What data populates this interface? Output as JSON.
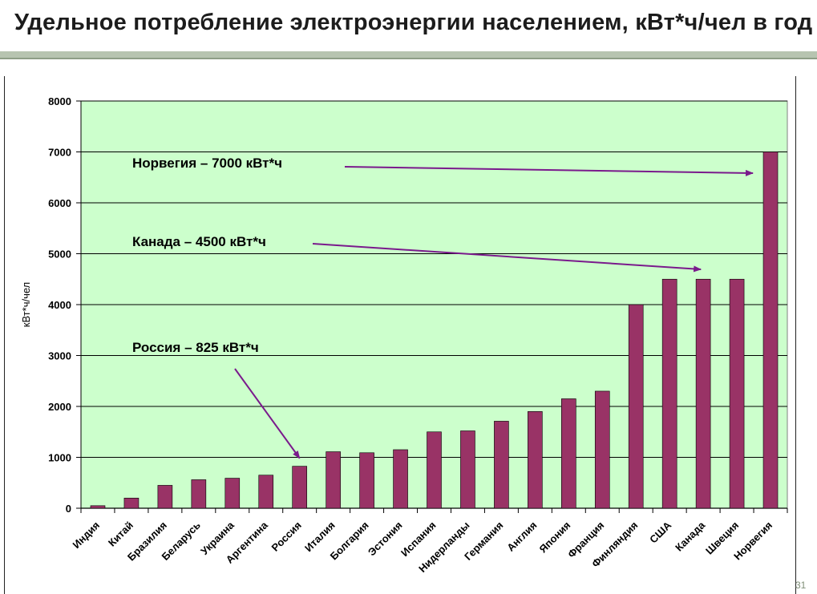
{
  "page": {
    "title": "Удельное потребление электроэнергии населением, кВт*ч/чел в год",
    "slide_number": "31"
  },
  "colors": {
    "plot_bg": "#ccffcc",
    "bar": "#993366",
    "arrow": "#7a1a8c",
    "grid": "#000000"
  },
  "chart_data": {
    "type": "bar",
    "title": "Удельное потребление электроэнергии населением, кВт*ч/чел в год",
    "xlabel": "",
    "ylabel": "кВт*ч/чел",
    "ylim": [
      0,
      8000
    ],
    "yticks": [
      0,
      1000,
      2000,
      3000,
      4000,
      5000,
      6000,
      7000,
      8000
    ],
    "grid": true,
    "categories": [
      "Индия",
      "Китай",
      "Бразилия",
      "Беларусь",
      "Украина",
      "Аргентина",
      "Россия",
      "Италия",
      "Болгария",
      "Эстония",
      "Испания",
      "Нидерланды",
      "Германия",
      "Англия",
      "Япония",
      "Франция",
      "Финляндия",
      "США",
      "Канада",
      "Швеция",
      "Норвегия"
    ],
    "values": [
      50,
      200,
      450,
      560,
      590,
      650,
      825,
      1110,
      1090,
      1150,
      1500,
      1520,
      1710,
      1900,
      2150,
      2300,
      4000,
      4500,
      4500,
      4500,
      7000
    ],
    "annotations": [
      {
        "text": "Норвегия – 7000 кВт*ч",
        "target": "Норвегия",
        "value": 7000
      },
      {
        "text": "Канада – 4500 кВт*ч",
        "target": "Канада",
        "value": 4500
      },
      {
        "text": "Россия – 825 кВт*ч",
        "target": "Россия",
        "value": 825
      }
    ]
  }
}
